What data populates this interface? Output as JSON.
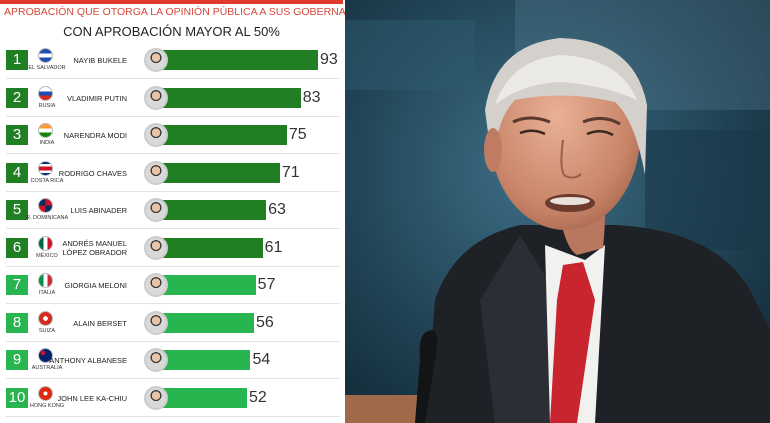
{
  "chart_data": {
    "type": "bar",
    "orientation": "horizontal",
    "title": "Aprobación que otorga la opinión pública a sus gobernantes",
    "subtitle": "Con aprobación mayor al 50%",
    "xlim": [
      0,
      100
    ],
    "ranks": [
      "1",
      "2",
      "3",
      "4",
      "5",
      "6",
      "7",
      "8",
      "9",
      "10"
    ],
    "categories": [
      "NAYIB BUKELE",
      "VLADIMIR PUTIN",
      "NARENDRA MODI",
      "RODRIGO CHAVES",
      "LUIS ABINADER",
      "ANDRÉS MANUEL\nLÓPEZ OBRADOR",
      "GIORGIA MELONI",
      "ALAIN BERSET",
      "ANTHONY ALBANESE",
      "JOHN LEE KA-CHIU"
    ],
    "countries": [
      "EL SALVADOR",
      "RUSIA",
      "INDIA",
      "COSTA RICA",
      "R. DOMINICANA",
      "MÉXICO",
      "ITALIA",
      "SUIZA",
      "AUSTRALIA",
      "HONG KONG"
    ],
    "values": [
      93,
      83,
      75,
      71,
      63,
      61,
      57,
      56,
      54,
      52
    ],
    "colors": [
      "#1f7f22",
      "#1f7f22",
      "#1f7f22",
      "#1f7f22",
      "#1f7f22",
      "#1f7f22",
      "#28b44e",
      "#28b44e",
      "#28b44e",
      "#28b44e"
    ]
  }
}
